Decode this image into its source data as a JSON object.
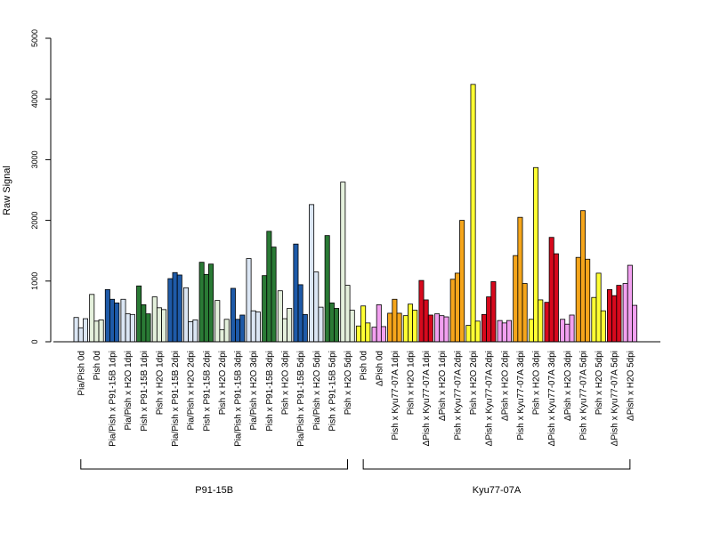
{
  "chart_data": {
    "type": "bar",
    "ylabel": "Raw Signal",
    "ylim": [
      0,
      5000
    ],
    "yticks": [
      0,
      1000,
      2000,
      3000,
      4000,
      5000
    ],
    "grid": false,
    "colors": {
      "lightblue": "#dbe6f4",
      "blue": "#1e5aa8",
      "lightgreen": "#e4f0dc",
      "green": "#2a7a35",
      "yellow": "#ffff33",
      "orange": "#f5a51b",
      "pink": "#f2a0f0",
      "red": "#d7091d"
    },
    "categories": [
      {
        "label": "Pia/Pish 0d",
        "color": "lightblue",
        "values": [
          400,
          230,
          380
        ]
      },
      {
        "label": "Pish 0d",
        "color": "lightgreen",
        "values": [
          780,
          340,
          360
        ]
      },
      {
        "label": "Pia/Pish x P91-15B 1dpi",
        "color": "blue",
        "values": [
          860,
          700,
          640
        ]
      },
      {
        "label": "Pia/Pish x H2O 1dpi",
        "color": "lightblue",
        "values": [
          700,
          460,
          450
        ]
      },
      {
        "label": "Pish x P91-15B 1dpi",
        "color": "green",
        "values": [
          920,
          610,
          460
        ]
      },
      {
        "label": "Pish x H2O 1dpi",
        "color": "lightgreen",
        "values": [
          740,
          560,
          530
        ]
      },
      {
        "label": "Pia/Pish x P91-15B 2dpi",
        "color": "blue",
        "values": [
          1040,
          1140,
          1100
        ]
      },
      {
        "label": "Pia/Pish x H2O 2dpi",
        "color": "lightblue",
        "values": [
          890,
          330,
          360
        ]
      },
      {
        "label": "Pish x P91-15B 2dpi",
        "color": "green",
        "values": [
          1310,
          1110,
          1280
        ]
      },
      {
        "label": "Pish x H2O 2dpi",
        "color": "lightgreen",
        "values": [
          680,
          200,
          370
        ]
      },
      {
        "label": "Pia/Pish x P91-15B 3dpi",
        "color": "blue",
        "values": [
          880,
          370,
          440
        ]
      },
      {
        "label": "Pia/Pish x H2O 3dpi",
        "color": "lightblue",
        "values": [
          1370,
          510,
          490
        ]
      },
      {
        "label": "Pish x P91-15B 3dpi",
        "color": "green",
        "values": [
          1090,
          1820,
          1560
        ]
      },
      {
        "label": "Pish x H2O 3dpi",
        "color": "lightgreen",
        "values": [
          840,
          380,
          550
        ]
      },
      {
        "label": "Pia/Pish x P91-15B 5dpi",
        "color": "blue",
        "values": [
          1610,
          940,
          450
        ]
      },
      {
        "label": "Pia/Pish x H2O 5dpi",
        "color": "lightblue",
        "values": [
          2260,
          1150,
          570
        ]
      },
      {
        "label": "Pish x P91-15B 5dpi",
        "color": "green",
        "values": [
          1750,
          640,
          550
        ]
      },
      {
        "label": "Pish x H2O 5dpi",
        "color": "lightgreen",
        "values": [
          2630,
          930,
          520
        ]
      },
      {
        "label": "Pish 0d",
        "color": "yellow",
        "values": [
          260,
          590,
          310
        ]
      },
      {
        "label": "ΔPish 0d",
        "color": "pink",
        "values": [
          240,
          610,
          250
        ]
      },
      {
        "label": "Pish x Kyu77-07A 1dpi",
        "color": "orange",
        "values": [
          470,
          700,
          470
        ]
      },
      {
        "label": "Pish x H2O 1dpi",
        "color": "yellow",
        "values": [
          430,
          620,
          520
        ]
      },
      {
        "label": "ΔPish x Kyu77-07A 1dpi",
        "color": "red",
        "values": [
          1010,
          690,
          440
        ]
      },
      {
        "label": "ΔPish x H2O 1dpi",
        "color": "pink",
        "values": [
          460,
          430,
          410
        ]
      },
      {
        "label": "Pish x Kyu77-07A 2dpi",
        "color": "orange",
        "values": [
          1030,
          1130,
          2000
        ]
      },
      {
        "label": "Pish x H2O 2dpi",
        "color": "yellow",
        "values": [
          270,
          4240,
          340
        ]
      },
      {
        "label": "ΔPish x Kyu77-07A 2dpi",
        "color": "red",
        "values": [
          450,
          740,
          990
        ]
      },
      {
        "label": "ΔPish x H2O 2dpi",
        "color": "pink",
        "values": [
          350,
          310,
          350
        ]
      },
      {
        "label": "Pish x Kyu77-07A 3dpi",
        "color": "orange",
        "values": [
          1420,
          2050,
          960
        ]
      },
      {
        "label": "Pish x H2O 3dpi",
        "color": "yellow",
        "values": [
          370,
          2870,
          690
        ]
      },
      {
        "label": "ΔPish x Kyu77-07A 3dpi",
        "color": "red",
        "values": [
          650,
          1720,
          1450
        ]
      },
      {
        "label": "ΔPish x H2O 3dpi",
        "color": "pink",
        "values": [
          370,
          290,
          440
        ]
      },
      {
        "label": "Pish x Kyu77-07A 5dpi",
        "color": "orange",
        "values": [
          1390,
          2160,
          1360
        ]
      },
      {
        "label": "Pish x H2O 5dpi",
        "color": "yellow",
        "values": [
          730,
          1130,
          510
        ]
      },
      {
        "label": "ΔPish x Kyu77-07A 5dpi",
        "color": "red",
        "values": [
          860,
          760,
          930
        ]
      },
      {
        "label": "ΔPish x H2O 5dpi",
        "color": "pink",
        "values": [
          960,
          1260,
          600
        ]
      }
    ],
    "groups": [
      {
        "label": "P91-15B",
        "from": 0,
        "to": 17
      },
      {
        "label": "Kyu77-07A",
        "from": 18,
        "to": 35
      }
    ]
  }
}
